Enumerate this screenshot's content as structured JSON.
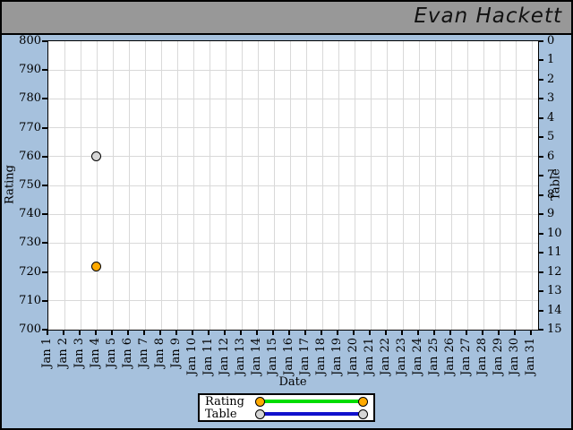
{
  "header": {
    "title": "Evan Hackett"
  },
  "colors": {
    "background": "#a6c1dd",
    "header_bar": "#989898",
    "plot_background": "#ffffff",
    "gridline": "#d9d9d9",
    "rating_line": "#00dd00",
    "rating_marker": "#ffaa00",
    "table_line": "#1111cc",
    "table_marker": "#d6d6d6"
  },
  "chart_data": {
    "type": "scatter",
    "title": "Evan Hackett",
    "xlabel": "Date",
    "ylabel_left": "Rating",
    "ylabel_right": "Table",
    "grid": true,
    "legend_position": "bottom-center",
    "x_categories": [
      "Jan 1",
      "Jan 2",
      "Jan 3",
      "Jan 4",
      "Jan 5",
      "Jan 6",
      "Jan 7",
      "Jan 8",
      "Jan 9",
      "Jan 10",
      "Jan 11",
      "Jan 12",
      "Jan 13",
      "Jan 14",
      "Jan 15",
      "Jan 16",
      "Jan 17",
      "Jan 18",
      "Jan 19",
      "Jan 20",
      "Jan 21",
      "Jan 22",
      "Jan 23",
      "Jan 24",
      "Jan 25",
      "Jan 26",
      "Jan 27",
      "Jan 28",
      "Jan 29",
      "Jan 30",
      "Jan 31"
    ],
    "left_axis": {
      "label": "Rating",
      "min": 700,
      "max": 800,
      "tick_step": 10
    },
    "right_axis": {
      "label": "Table",
      "min": 0,
      "max": 15,
      "tick_step": 1,
      "reversed": true
    },
    "series": [
      {
        "name": "Rating",
        "yaxis": "left",
        "line_color": "#00dd00",
        "marker_color": "#ffaa00",
        "data": [
          {
            "date": "Jan 4",
            "value": 722
          }
        ]
      },
      {
        "name": "Table",
        "yaxis": "right",
        "line_color": "#1111cc",
        "marker_color": "#d6d6d6",
        "data": [
          {
            "date": "Jan 4",
            "value": 6
          }
        ]
      }
    ]
  }
}
